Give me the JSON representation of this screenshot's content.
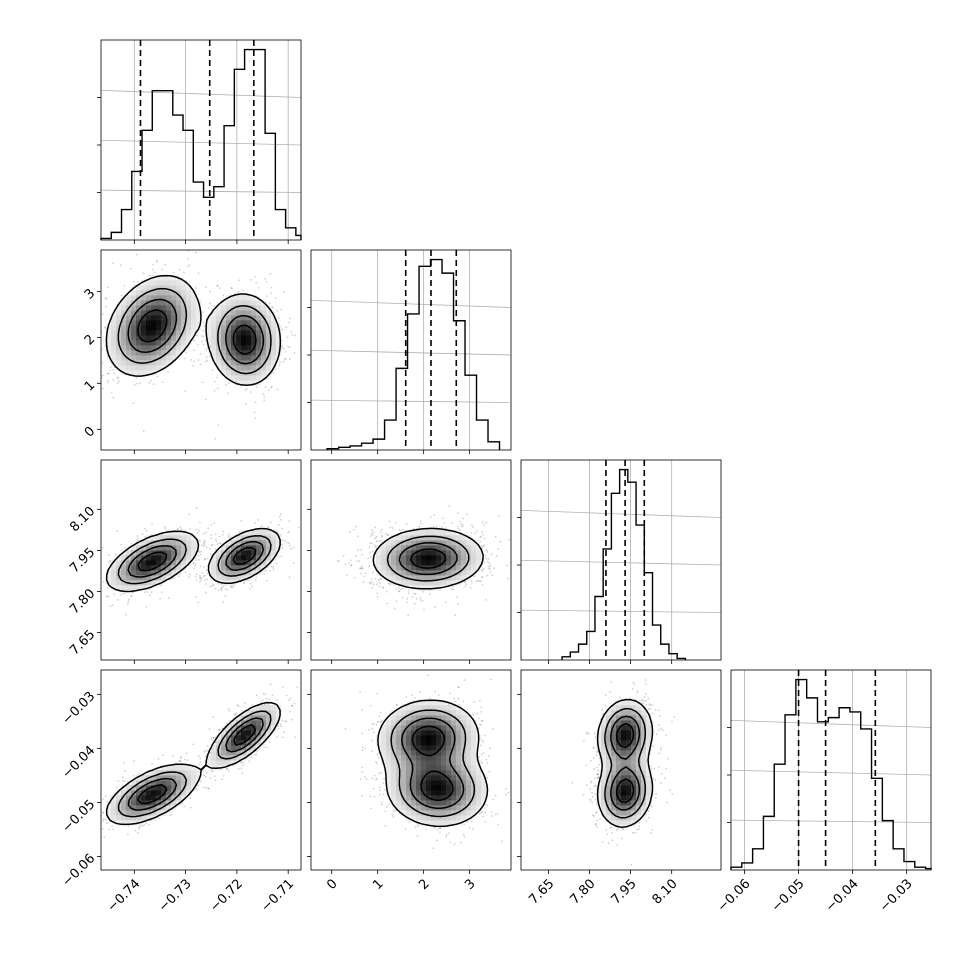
{
  "chart_data": {
    "type": "corner",
    "grid": true,
    "parameters": [
      {
        "range": [
          -0.7465,
          -0.7075
        ],
        "ticks": [
          -0.74,
          -0.73,
          -0.72,
          -0.71
        ],
        "tick_labels": [
          "−0.74",
          "−0.73",
          "−0.72",
          "−0.71"
        ],
        "quantiles": [
          -0.7388,
          -0.7253,
          -0.7167
        ],
        "hist_bin_edges": [
          -0.7465,
          -0.7445,
          -0.7425,
          -0.7405,
          -0.7385,
          -0.7365,
          -0.7345,
          -0.7325,
          -0.7305,
          -0.7285,
          -0.7265,
          -0.7245,
          -0.7225,
          -0.7205,
          -0.7185,
          -0.7165,
          -0.7145,
          -0.7125,
          -0.7105,
          -0.7085,
          -0.7075
        ],
        "hist_counts": [
          1,
          5,
          20,
          45,
          72,
          98,
          98,
          82,
          72,
          38,
          28,
          35,
          75,
          112,
          125,
          125,
          70,
          20,
          8,
          3
        ]
      },
      {
        "range": [
          -0.45,
          3.9
        ],
        "ticks": [
          0,
          1,
          2,
          3
        ],
        "tick_labels": [
          "0",
          "1",
          "2",
          "3"
        ],
        "quantiles": [
          1.61,
          2.16,
          2.71
        ],
        "hist_bin_edges": [
          0.4,
          0.65,
          0.9,
          1.15,
          1.4,
          1.65,
          1.9,
          2.15,
          2.4,
          2.65,
          2.9,
          3.15,
          3.4,
          3.65
        ],
        "hist_counts": [
          3,
          5,
          8,
          22,
          60,
          100,
          135,
          140,
          130,
          95,
          55,
          22,
          6
        ],
        "hist_extra": {
          "edges": [
            -0.1,
            0.15,
            0.4
          ],
          "counts": [
            1,
            2
          ]
        }
      },
      {
        "range": [
          7.55,
          8.28
        ],
        "ticks": [
          7.65,
          7.8,
          7.95,
          8.1
        ],
        "tick_labels": [
          "7.65",
          "7.80",
          "7.95",
          "8.10"
        ],
        "quantiles": [
          7.86,
          7.93,
          8.0
        ],
        "hist_bin_edges": [
          7.7,
          7.73,
          7.76,
          7.79,
          7.82,
          7.85,
          7.88,
          7.91,
          7.94,
          7.97,
          8.0,
          8.03,
          8.06,
          8.09,
          8.12,
          8.15
        ],
        "hist_counts": [
          2,
          5,
          10,
          18,
          40,
          70,
          105,
          120,
          112,
          85,
          55,
          22,
          10,
          4,
          1
        ]
      },
      {
        "range": [
          -0.0625,
          -0.0255
        ],
        "ticks": [
          -0.06,
          -0.05,
          -0.04,
          -0.03
        ],
        "tick_labels": [
          "−0.06",
          "−0.05",
          "−0.04",
          "−0.03"
        ],
        "quantiles": [
          -0.05,
          -0.045,
          -0.0358
        ],
        "hist_bin_edges": [
          -0.0625,
          -0.0605,
          -0.0585,
          -0.0565,
          -0.0545,
          -0.0525,
          -0.0505,
          -0.0485,
          -0.0465,
          -0.0445,
          -0.0425,
          -0.0405,
          -0.0385,
          -0.0365,
          -0.0345,
          -0.0325,
          -0.0305,
          -0.0285,
          -0.0265,
          -0.0255
        ],
        "hist_counts": [
          2,
          5,
          15,
          38,
          75,
          110,
          135,
          122,
          105,
          108,
          115,
          112,
          100,
          65,
          35,
          15,
          6,
          2,
          1
        ]
      }
    ],
    "joint_modes": {
      "1_0": [
        {
          "center": [
            -0.7365,
            2.25
          ],
          "sd": [
            0.0045,
            0.55
          ],
          "rho": 0.3
        },
        {
          "center": [
            -0.7185,
            1.95
          ],
          "sd": [
            0.0035,
            0.5
          ],
          "rho": -0.05
        }
      ],
      "2_0": [
        {
          "center": [
            -0.7365,
            7.91
          ],
          "sd": [
            0.0045,
            0.055
          ],
          "rho": 0.55
        },
        {
          "center": [
            -0.7185,
            7.93
          ],
          "sd": [
            0.0035,
            0.05
          ],
          "rho": 0.5
        }
      ],
      "2_1": [
        {
          "center": [
            2.1,
            7.92
          ],
          "sd": [
            0.6,
            0.055
          ],
          "rho": 0.05
        }
      ],
      "3_0": [
        {
          "center": [
            -0.7365,
            -0.0485
          ],
          "sd": [
            0.0045,
            0.0028
          ],
          "rho": 0.6
        },
        {
          "center": [
            -0.7185,
            -0.0375
          ],
          "sd": [
            0.0035,
            0.003
          ],
          "rho": 0.7
        }
      ],
      "3_1": [
        {
          "center": [
            2.3,
            -0.0475
          ],
          "sd": [
            0.55,
            0.0035
          ],
          "rho": -0.05
        },
        {
          "center": [
            2.1,
            -0.038
          ],
          "sd": [
            0.55,
            0.0035
          ],
          "rho": 0.05
        }
      ],
      "3_2": [
        {
          "center": [
            7.93,
            -0.048
          ],
          "sd": [
            0.05,
            0.0033
          ],
          "rho": 0.1
        },
        {
          "center": [
            7.93,
            -0.0375
          ],
          "sd": [
            0.05,
            0.0033
          ],
          "rho": 0.1
        }
      ]
    },
    "colors": {
      "line": "#000000",
      "grid": "#b0b0b0",
      "scatter": "#000000",
      "density_low": "#ffffff",
      "density_high": "#000000"
    }
  }
}
